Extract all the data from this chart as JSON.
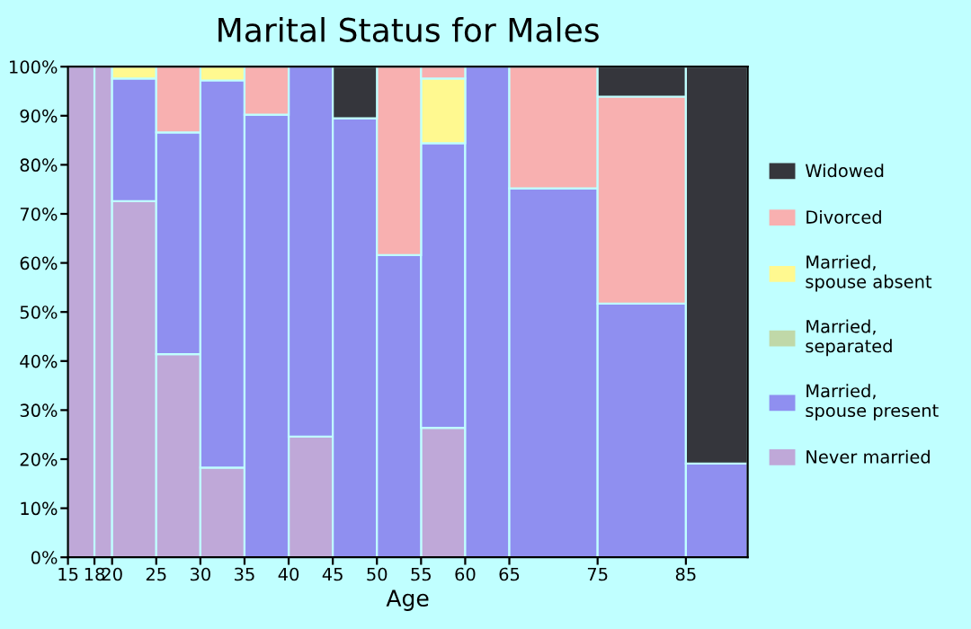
{
  "chart_data": {
    "type": "bar",
    "stacked": true,
    "title": "Marital Status for Males",
    "xlabel": "Age",
    "x": [
      16.5,
      19,
      22.5,
      27.5,
      32.5,
      37.5,
      42.5,
      47.5,
      52.5,
      57.5,
      62.5,
      70,
      80,
      88.5
    ],
    "xlim": [
      15,
      92
    ],
    "xticks": [
      15,
      18,
      20,
      25,
      30,
      35,
      40,
      45,
      50,
      55,
      60,
      65,
      75,
      85
    ],
    "ylim": [
      0,
      100
    ],
    "yticks": [
      {
        "value": 0,
        "label": "0%"
      },
      {
        "value": 10,
        "label": "10%"
      },
      {
        "value": 20,
        "label": "20%"
      },
      {
        "value": 30,
        "label": "30%"
      },
      {
        "value": 40,
        "label": "40%"
      },
      {
        "value": 50,
        "label": "50%"
      },
      {
        "value": 60,
        "label": "60%"
      },
      {
        "value": 70,
        "label": "70%"
      },
      {
        "value": 80,
        "label": "80%"
      },
      {
        "value": 90,
        "label": "90%"
      },
      {
        "value": 100,
        "label": "100%"
      }
    ],
    "grid": false,
    "legend": "right",
    "series": [
      {
        "name": "Never married",
        "color": "#bfa8d8",
        "values": [
          100,
          100,
          72.6,
          41.4,
          18.3,
          0,
          24.6,
          0,
          0,
          26.4,
          0,
          0,
          0,
          0
        ]
      },
      {
        "name": "Married, spouse present",
        "color": "#8f8ff0",
        "values": [
          0,
          0,
          25.0,
          45.2,
          78.9,
          90.2,
          75.4,
          89.5,
          61.6,
          58.0,
          100,
          75.2,
          51.7,
          19.1
        ]
      },
      {
        "name": "Married, separated",
        "color": "#c0d8a8",
        "values": [
          0,
          0,
          0,
          0,
          0,
          0,
          0,
          0,
          0,
          0,
          0,
          0,
          0,
          0
        ]
      },
      {
        "name": "Married, spouse absent",
        "color": "#fff990",
        "values": [
          0,
          0,
          2.4,
          0,
          2.8,
          0,
          0,
          0,
          0,
          13.2,
          0,
          0,
          0,
          0
        ]
      },
      {
        "name": "Divorced",
        "color": "#f8b0b0",
        "values": [
          0,
          0,
          0,
          13.4,
          0,
          9.8,
          0,
          0,
          38.4,
          2.4,
          0,
          24.8,
          42.2,
          0
        ]
      },
      {
        "name": "Widowed",
        "color": "#35363c",
        "values": [
          0,
          0,
          0,
          0,
          0,
          0,
          0,
          10.5,
          0,
          0,
          0,
          0,
          6.1,
          80.9
        ]
      }
    ]
  }
}
